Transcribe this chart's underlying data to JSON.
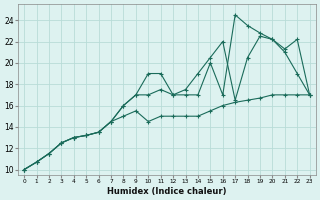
{
  "xlabel": "Humidex (Indice chaleur)",
  "bg_color": "#ddf2f0",
  "grid_color": "#b8dcd8",
  "line_color": "#1a6b5a",
  "xlim": [
    -0.5,
    23.5
  ],
  "ylim": [
    9.5,
    25.5
  ],
  "xticks": [
    0,
    1,
    2,
    3,
    4,
    5,
    6,
    7,
    8,
    9,
    10,
    11,
    12,
    13,
    14,
    15,
    16,
    17,
    18,
    19,
    20,
    21,
    22,
    23
  ],
  "yticks": [
    10,
    12,
    14,
    16,
    18,
    20,
    22,
    24
  ],
  "line1_x": [
    0,
    1,
    2,
    3,
    4,
    5,
    6,
    7,
    8,
    9,
    10,
    11,
    12,
    13,
    14,
    15,
    16,
    17,
    18,
    19,
    20,
    21,
    22,
    23
  ],
  "line1_y": [
    10.0,
    10.7,
    11.5,
    12.5,
    13.0,
    13.2,
    13.5,
    14.5,
    15.0,
    15.5,
    14.5,
    15.0,
    15.0,
    15.0,
    15.0,
    15.5,
    16.0,
    16.3,
    16.5,
    16.7,
    17.0,
    17.0,
    17.0,
    17.0
  ],
  "line2_x": [
    0,
    1,
    2,
    3,
    4,
    5,
    6,
    7,
    8,
    9,
    10,
    11,
    12,
    13,
    14,
    15,
    16,
    17,
    18,
    19,
    20,
    21,
    22,
    23
  ],
  "line2_y": [
    10.0,
    10.7,
    11.5,
    12.5,
    13.0,
    13.2,
    13.5,
    14.5,
    16.0,
    17.0,
    19.0,
    19.0,
    17.0,
    17.0,
    17.0,
    20.0,
    17.0,
    24.5,
    23.5,
    22.8,
    22.2,
    21.0,
    19.0,
    17.0
  ],
  "line3_x": [
    0,
    1,
    2,
    3,
    4,
    5,
    6,
    7,
    8,
    9,
    10,
    11,
    12,
    13,
    14,
    15,
    16,
    17,
    18,
    19,
    20,
    21,
    22,
    23
  ],
  "line3_y": [
    10.0,
    10.7,
    11.5,
    12.5,
    13.0,
    13.2,
    13.5,
    14.5,
    16.0,
    17.0,
    17.0,
    17.5,
    17.0,
    17.5,
    19.0,
    20.5,
    22.0,
    16.5,
    20.5,
    22.5,
    22.2,
    21.3,
    22.2,
    17.0
  ]
}
